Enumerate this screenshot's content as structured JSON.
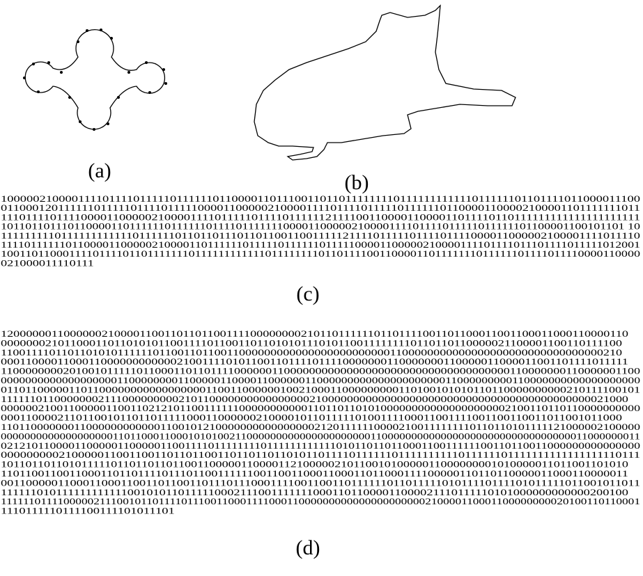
{
  "panels": [
    {
      "label": "(a)"
    },
    {
      "label": "(b)"
    }
  ],
  "codes": [
    {
      "label": "(c)",
      "lines": [
        "1000002100001111011110111110111111011000011011100110110111111110111111111111011111101101111011000011100",
        "0110001201111110111110111101111100001100000210000111101111011111011111101100001100002100001101111111011",
        "1110111101111000011000002100001111011111011110111111211110011000011000011011110110111111111111111111111",
        "1011011011101100001101111110111111011110111111100001100000210000111101111011111011111101100001100101101 10",
        "11111111101111111111110111111011011011101101100110011111211110111110111101111000011000002100001111011110",
        "1111011111101100001100000210000110111111011111011111101111100001100000210000111101111011101111011111012001",
        "1001101100011110111101101111111011111111111101111111101101111001100001101111111011111101111011110000110000",
        "021000011110111"
      ]
    },
    {
      "label": "(d)",
      "lines": [
        "12000000110000002100001100110110110011110000000021011011111101101111001101100011001100011000110000110",
        "0000000210110001101101010110011110110011011010101110101100111111110110110110000021100001100110111100",
        "1100111101101101010111111011001101100110000000000000000000000001100000000000000000000000000000000210",
        "00011000011000110000000000002100111101011001101111011110000000110000000110000011000011001101111011111",
        "1100000000201001011111011000110110111100000011000000000000000000000000000000000000110000000110000001100",
        "000000000000000000011000000001100000110000110000001100000000000000000000011000000000110000000000000000000",
        "0110110000011011000000000000000001100110000001002100011000000000110100101010110110000000000210111100101",
        "11111101100000002111000000000210110000000000000000210000000000000000000000000000000000000000000021000",
        "00000021001100000110011021210110011111100000000000110110110101000000000000000000002100110110110000000000",
        "0001100002110110010110110111110001100000021000010110111110100111100011001111001100110011011001011000",
        "110110000000110000000000001100101210000000000000000212011111100002100111111110110110101111121000002100000",
        "0000000000000000000110110001100010101002110000000000000000000001100000000000000000000000000000000011000000011",
        "0212101100001100000110000011001111011111111011111111111101011011011000110011111100110110011000000000000000",
        "0000000002100000110011001101101100110110110110101101111011111101111111111011111101111111111111111110111",
        "10110110110101111101101101101100110000011000011210000021011001010000011000000001010000011011001101010",
        "11011001100110001101101111011101100111111001100110001100011011000111100000110110110000011000110000011",
        "0011000001100011000110011011001101110111000111100110011011111101101111101011110111101011111011001011011",
        "11111101011111111111100101011011111000211100111111100011011000011000021110111110101000000000000200100",
        "111111011110000021110010110111101110011000111100011000000000000000000000210000110001100000000020100110110001",
        "1110111110111100111101011101"
      ]
    }
  ]
}
